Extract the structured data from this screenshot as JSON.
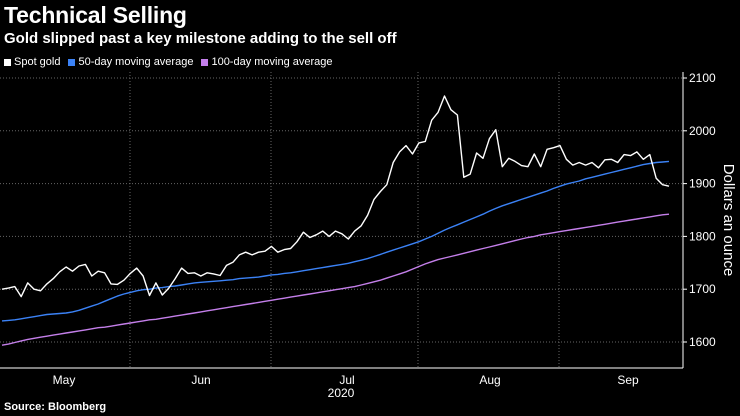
{
  "chart_data": {
    "type": "line",
    "title": "Technical Selling",
    "subtitle": "Gold slipped past a key milestone adding to the sell off",
    "source": "Source: Bloomberg",
    "ylabel": "Dollars an ounce",
    "ylim": [
      1550,
      2110
    ],
    "yticks": [
      1600,
      1700,
      1800,
      1900,
      2000,
      2100
    ],
    "x_tick_labels": [
      "May",
      "Jun",
      "Jul",
      "Aug",
      "Sep"
    ],
    "x_year_label": "2020",
    "grid": true,
    "legend_position": "top-left",
    "series": [
      {
        "name": "Spot gold",
        "color": "#ffffff",
        "values": [
          1700,
          1702,
          1705,
          1686,
          1712,
          1700,
          1697,
          1710,
          1720,
          1733,
          1742,
          1734,
          1744,
          1747,
          1725,
          1734,
          1731,
          1710,
          1709,
          1717,
          1730,
          1740,
          1725,
          1688,
          1712,
          1689,
          1702,
          1720,
          1740,
          1730,
          1731,
          1725,
          1731,
          1729,
          1726,
          1745,
          1751,
          1765,
          1770,
          1765,
          1770,
          1772,
          1781,
          1770,
          1775,
          1777,
          1790,
          1808,
          1798,
          1803,
          1810,
          1800,
          1810,
          1805,
          1795,
          1810,
          1820,
          1840,
          1870,
          1885,
          1898,
          1940,
          1960,
          1972,
          1956,
          1977,
          1980,
          2020,
          2035,
          2066,
          2040,
          2030,
          1912,
          1918,
          1958,
          1948,
          1985,
          2002,
          1932,
          1948,
          1942,
          1934,
          1932,
          1956,
          1932,
          1965,
          1968,
          1972,
          1946,
          1935,
          1940,
          1935,
          1940,
          1930,
          1945,
          1946,
          1940,
          1955,
          1953,
          1960,
          1946,
          1955,
          1910,
          1898,
          1895
        ]
      },
      {
        "name": "50-day moving average",
        "color": "#3b82f6",
        "values": [
          1640,
          1641,
          1642,
          1644,
          1646,
          1648,
          1650,
          1652,
          1653,
          1654,
          1655,
          1657,
          1660,
          1664,
          1668,
          1672,
          1677,
          1682,
          1687,
          1691,
          1694,
          1697,
          1699,
          1700,
          1702,
          1703,
          1705,
          1706,
          1708,
          1710,
          1712,
          1713,
          1714,
          1715,
          1716,
          1717,
          1718,
          1720,
          1721,
          1722,
          1723,
          1725,
          1727,
          1728,
          1730,
          1731,
          1733,
          1735,
          1737,
          1739,
          1741,
          1743,
          1745,
          1747,
          1749,
          1752,
          1755,
          1758,
          1762,
          1766,
          1770,
          1774,
          1778,
          1782,
          1786,
          1790,
          1795,
          1800,
          1806,
          1812,
          1817,
          1822,
          1827,
          1832,
          1837,
          1842,
          1848,
          1853,
          1858,
          1862,
          1866,
          1870,
          1874,
          1878,
          1882,
          1886,
          1891,
          1895,
          1899,
          1902,
          1905,
          1909,
          1912,
          1915,
          1918,
          1921,
          1924,
          1927,
          1930,
          1933,
          1936,
          1938,
          1940,
          1941,
          1942
        ]
      },
      {
        "name": "100-day moving average",
        "color": "#c47fea",
        "values": [
          1594,
          1596,
          1599,
          1602,
          1605,
          1607,
          1609,
          1611,
          1613,
          1615,
          1617,
          1619,
          1621,
          1623,
          1625,
          1627,
          1628,
          1630,
          1632,
          1634,
          1636,
          1638,
          1640,
          1642,
          1643,
          1645,
          1647,
          1649,
          1651,
          1653,
          1655,
          1657,
          1659,
          1661,
          1663,
          1665,
          1667,
          1669,
          1671,
          1673,
          1675,
          1677,
          1679,
          1681,
          1683,
          1685,
          1687,
          1689,
          1691,
          1693,
          1695,
          1697,
          1699,
          1701,
          1703,
          1705,
          1708,
          1711,
          1714,
          1717,
          1721,
          1725,
          1729,
          1733,
          1738,
          1743,
          1748,
          1752,
          1756,
          1759,
          1762,
          1765,
          1768,
          1771,
          1774,
          1777,
          1780,
          1783,
          1786,
          1789,
          1792,
          1795,
          1798,
          1800,
          1803,
          1805,
          1807,
          1809,
          1811,
          1813,
          1815,
          1817,
          1819,
          1821,
          1823,
          1825,
          1827,
          1829,
          1831,
          1833,
          1835,
          1837,
          1839,
          1841,
          1842
        ]
      }
    ]
  }
}
